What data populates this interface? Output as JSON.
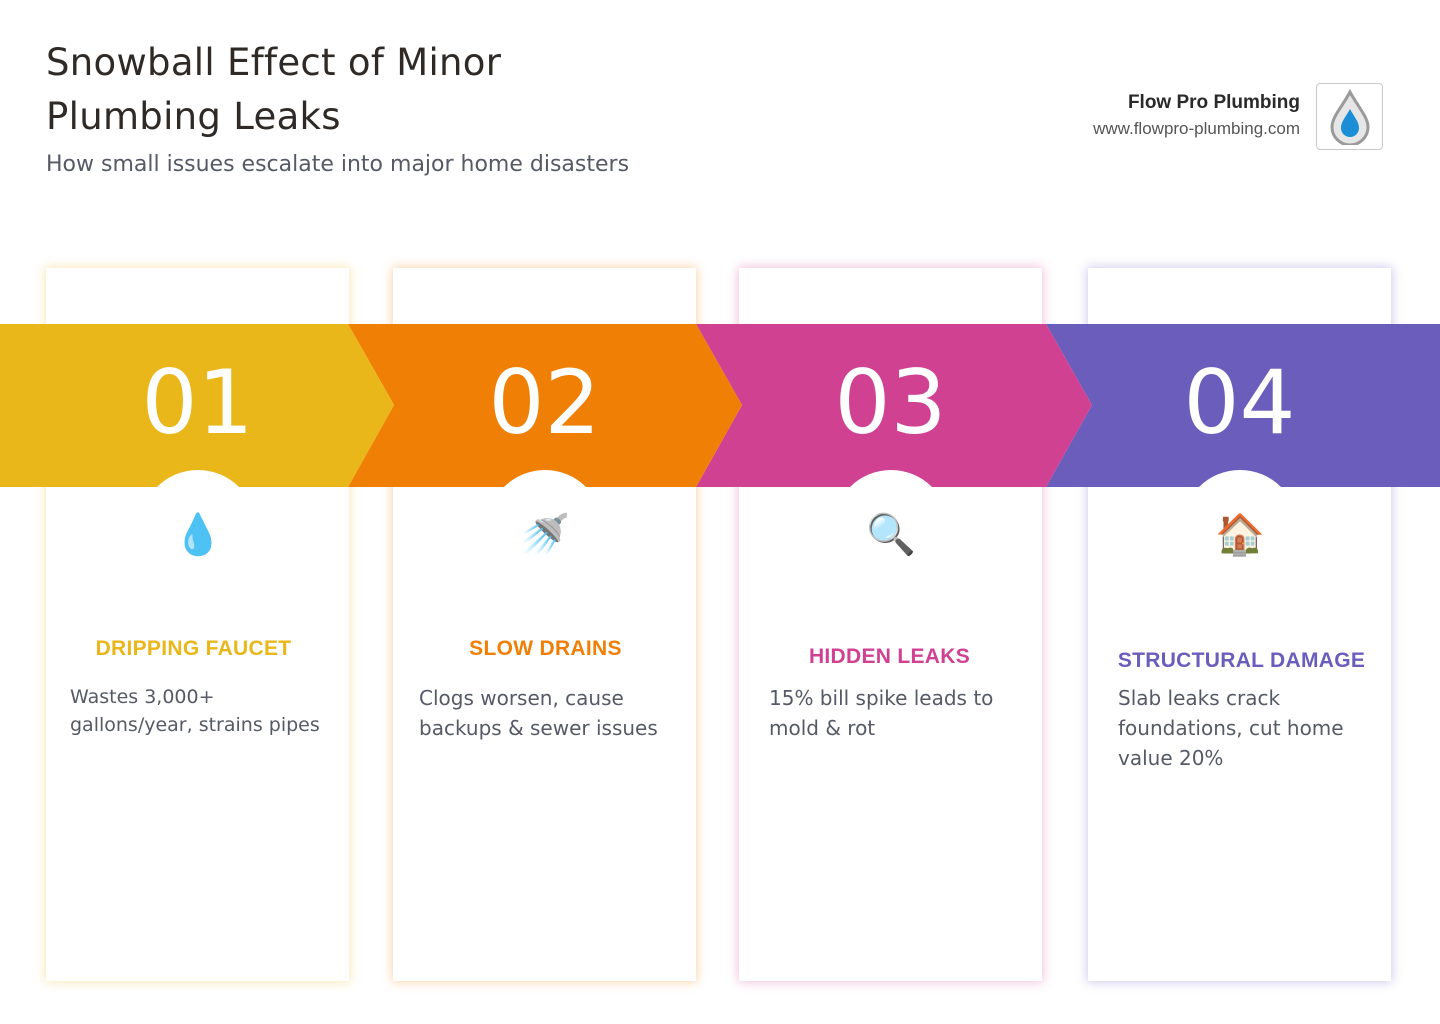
{
  "header": {
    "title": "Snowball Effect of Minor Plumbing Leaks",
    "subtitle": "How small issues escalate into major home disasters"
  },
  "brand": {
    "name": "Flow Pro Plumbing",
    "url": "www.flowpro-plumbing.com",
    "logo_icon": "water-drop-icon"
  },
  "steps": [
    {
      "number": "01",
      "title": "DRIPPING FAUCET",
      "description": "Wastes 3,000+ gallons/year, strains pipes",
      "icon_glyph": "💧",
      "icon_name": "droplet-icon",
      "color": "#EAB71B"
    },
    {
      "number": "02",
      "title": "SLOW DRAINS",
      "description": "Clogs worsen, cause backups & sewer issues",
      "icon_glyph": "🚿",
      "icon_name": "shower-icon",
      "color": "#F07F05"
    },
    {
      "number": "03",
      "title": "HIDDEN LEAKS",
      "description": "15% bill spike leads to mold & rot",
      "icon_glyph": "🔍",
      "icon_name": "magnifier-icon",
      "color": "#D14191"
    },
    {
      "number": "04",
      "title": "STRUCTURAL DAMAGE",
      "description": "Slab leaks crack foundations, cut home value 20%",
      "icon_glyph": "🏠",
      "icon_name": "house-icon",
      "color": "#6B5DBC"
    }
  ]
}
